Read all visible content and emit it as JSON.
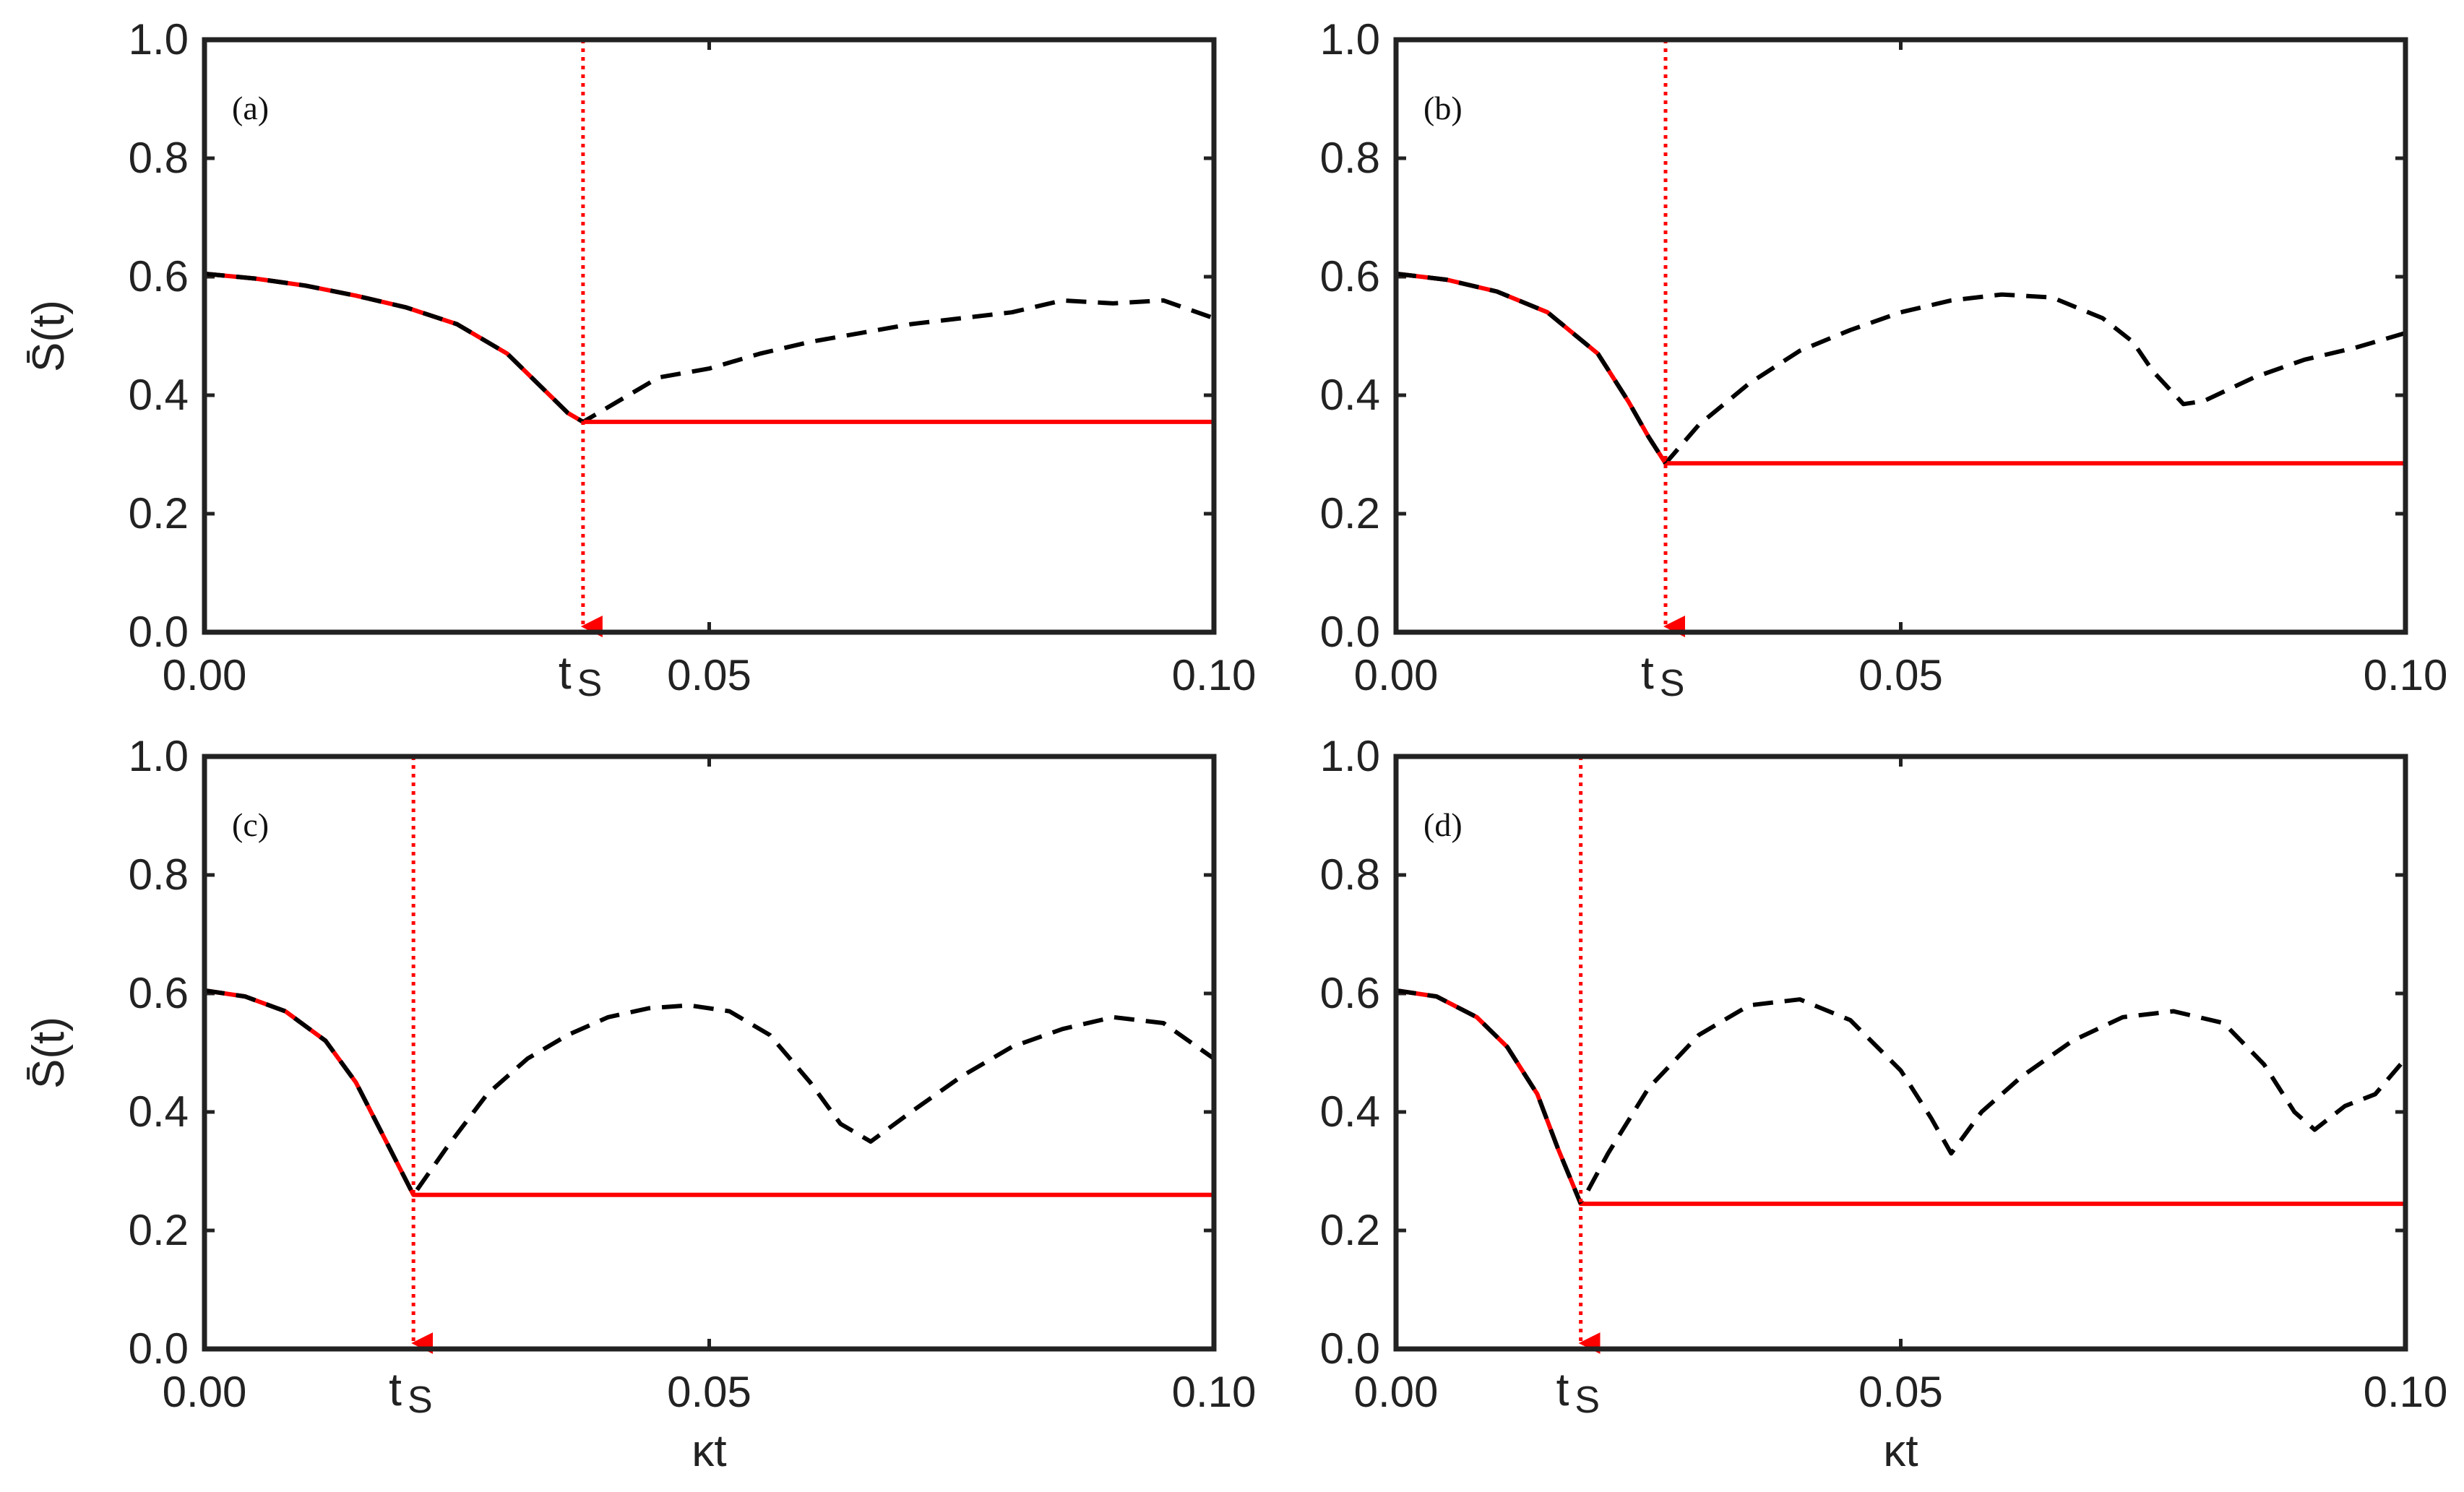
{
  "chart_data": [
    {
      "type": "line",
      "panel_label": "(a)",
      "ylabel": "S̄(t)",
      "xlabel": "",
      "xlim": [
        0,
        0.1
      ],
      "ylim": [
        0,
        1
      ],
      "xticks": [
        "0.00",
        "0.05",
        "0.10"
      ],
      "yticks": [
        "0.0",
        "0.2",
        "0.4",
        "0.6",
        "0.8",
        "1.0"
      ],
      "grid": false,
      "marker": {
        "label": "t",
        "subscript": "S",
        "x": 0.0375
      },
      "series": [
        {
          "style": "dashed",
          "color": "#000000",
          "x": [
            0,
            0.005,
            0.01,
            0.015,
            0.02,
            0.025,
            0.03,
            0.033,
            0.036,
            0.0375,
            0.04,
            0.045,
            0.05,
            0.055,
            0.06,
            0.065,
            0.07,
            0.075,
            0.08,
            0.085,
            0.09,
            0.095,
            0.1
          ],
          "y": [
            0.605,
            0.597,
            0.585,
            0.568,
            0.548,
            0.52,
            0.47,
            0.42,
            0.37,
            0.355,
            0.38,
            0.43,
            0.445,
            0.47,
            0.49,
            0.505,
            0.52,
            0.53,
            0.54,
            0.56,
            0.555,
            0.56,
            0.53
          ]
        },
        {
          "style": "solid",
          "color": "#ff0000",
          "x": [
            0,
            0.005,
            0.01,
            0.015,
            0.02,
            0.025,
            0.03,
            0.033,
            0.036,
            0.0375,
            0.1
          ],
          "y": [
            0.605,
            0.597,
            0.585,
            0.568,
            0.548,
            0.52,
            0.47,
            0.42,
            0.37,
            0.355,
            0.355
          ]
        }
      ]
    },
    {
      "type": "line",
      "panel_label": "(b)",
      "ylabel": "",
      "xlabel": "",
      "xlim": [
        0,
        0.1
      ],
      "ylim": [
        0,
        1
      ],
      "xticks": [
        "0.00",
        "0.05",
        "0.10"
      ],
      "yticks": [
        "0.0",
        "0.2",
        "0.4",
        "0.6",
        "0.8",
        "1.0"
      ],
      "grid": false,
      "marker": {
        "label": "t",
        "subscript": "S",
        "x": 0.0267
      },
      "series": [
        {
          "style": "dashed",
          "color": "#000000",
          "x": [
            0,
            0.005,
            0.01,
            0.015,
            0.02,
            0.023,
            0.025,
            0.0267,
            0.03,
            0.035,
            0.04,
            0.045,
            0.05,
            0.055,
            0.06,
            0.065,
            0.07,
            0.073,
            0.075,
            0.078,
            0.08,
            0.085,
            0.09,
            0.095,
            0.1
          ],
          "y": [
            0.605,
            0.595,
            0.575,
            0.54,
            0.47,
            0.39,
            0.33,
            0.285,
            0.35,
            0.42,
            0.475,
            0.51,
            0.54,
            0.56,
            0.57,
            0.565,
            0.53,
            0.49,
            0.44,
            0.385,
            0.39,
            0.43,
            0.46,
            0.48,
            0.505
          ]
        },
        {
          "style": "solid",
          "color": "#ff0000",
          "x": [
            0,
            0.005,
            0.01,
            0.015,
            0.02,
            0.023,
            0.025,
            0.0267,
            0.1
          ],
          "y": [
            0.605,
            0.595,
            0.575,
            0.54,
            0.47,
            0.39,
            0.33,
            0.285,
            0.285
          ]
        }
      ]
    },
    {
      "type": "line",
      "panel_label": "(c)",
      "ylabel": "S̄(t)",
      "xlabel": "κt",
      "xlim": [
        0,
        0.1
      ],
      "ylim": [
        0,
        1
      ],
      "xticks": [
        "0.00",
        "0.05",
        "0.10"
      ],
      "yticks": [
        "0.0",
        "0.2",
        "0.4",
        "0.6",
        "0.8",
        "1.0"
      ],
      "grid": false,
      "marker": {
        "label": "t",
        "subscript": "S",
        "x": 0.0207
      },
      "series": [
        {
          "style": "dashed",
          "color": "#000000",
          "x": [
            0,
            0.004,
            0.008,
            0.012,
            0.015,
            0.018,
            0.0207,
            0.024,
            0.028,
            0.032,
            0.036,
            0.04,
            0.044,
            0.048,
            0.052,
            0.056,
            0.06,
            0.063,
            0.066,
            0.07,
            0.075,
            0.08,
            0.085,
            0.09,
            0.095,
            0.1
          ],
          "y": [
            0.605,
            0.595,
            0.57,
            0.52,
            0.45,
            0.35,
            0.26,
            0.34,
            0.43,
            0.49,
            0.53,
            0.56,
            0.575,
            0.58,
            0.57,
            0.53,
            0.45,
            0.38,
            0.35,
            0.4,
            0.46,
            0.51,
            0.54,
            0.56,
            0.55,
            0.49
          ]
        },
        {
          "style": "solid",
          "color": "#ff0000",
          "x": [
            0,
            0.004,
            0.008,
            0.012,
            0.015,
            0.018,
            0.0207,
            0.1
          ],
          "y": [
            0.605,
            0.595,
            0.57,
            0.52,
            0.45,
            0.35,
            0.26,
            0.26
          ]
        }
      ]
    },
    {
      "type": "line",
      "panel_label": "(d)",
      "ylabel": "",
      "xlabel": "κt",
      "xlim": [
        0,
        0.1
      ],
      "ylim": [
        0,
        1
      ],
      "xticks": [
        "0.00",
        "0.05",
        "0.10"
      ],
      "yticks": [
        "0.0",
        "0.2",
        "0.4",
        "0.6",
        "0.8",
        "1.0"
      ],
      "grid": false,
      "marker": {
        "label": "t",
        "subscript": "S",
        "x": 0.0183
      },
      "series": [
        {
          "style": "dashed",
          "color": "#000000",
          "x": [
            0,
            0.004,
            0.008,
            0.011,
            0.014,
            0.016,
            0.0183,
            0.021,
            0.025,
            0.03,
            0.035,
            0.04,
            0.045,
            0.05,
            0.053,
            0.055,
            0.058,
            0.062,
            0.067,
            0.072,
            0.077,
            0.082,
            0.086,
            0.089,
            0.091,
            0.094,
            0.097,
            0.1
          ],
          "y": [
            0.605,
            0.595,
            0.56,
            0.51,
            0.43,
            0.34,
            0.245,
            0.33,
            0.44,
            0.53,
            0.58,
            0.59,
            0.555,
            0.47,
            0.39,
            0.33,
            0.4,
            0.46,
            0.52,
            0.56,
            0.57,
            0.55,
            0.48,
            0.4,
            0.37,
            0.41,
            0.43,
            0.49
          ]
        },
        {
          "style": "solid",
          "color": "#ff0000",
          "x": [
            0,
            0.004,
            0.008,
            0.011,
            0.014,
            0.016,
            0.0183,
            0.1
          ],
          "y": [
            0.605,
            0.595,
            0.56,
            0.51,
            0.43,
            0.34,
            0.245,
            0.245
          ]
        }
      ]
    }
  ]
}
